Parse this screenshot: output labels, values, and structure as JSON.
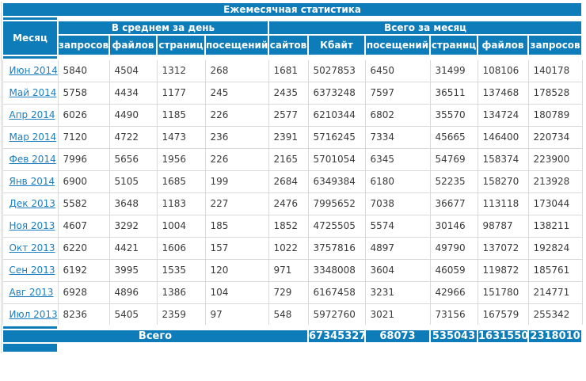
{
  "title": "Ежемесячная статистика",
  "table": {
    "month_header": "Месяц",
    "group_headers": {
      "avg_per_day": "В среднем за день",
      "total_per_month": "Всего за месяц"
    },
    "avg_columns": [
      "запросов",
      "файлов",
      "страниц",
      "посещений"
    ],
    "total_columns": [
      "сайтов",
      "Кбайт",
      "посещений",
      "страниц",
      "файлов",
      "запросов"
    ],
    "rows": [
      {
        "month": "Июн 2014",
        "values": [
          "5840",
          "4504",
          "1312",
          "268",
          "1681",
          "5027853",
          "6450",
          "31499",
          "108106",
          "140178"
        ]
      },
      {
        "month": "Май 2014",
        "values": [
          "5758",
          "4434",
          "1177",
          "245",
          "2435",
          "6373248",
          "7597",
          "36511",
          "137468",
          "178528"
        ]
      },
      {
        "month": "Апр 2014",
        "values": [
          "6026",
          "4490",
          "1185",
          "226",
          "2577",
          "6210344",
          "6802",
          "35570",
          "134724",
          "180789"
        ]
      },
      {
        "month": "Мар 2014",
        "values": [
          "7120",
          "4722",
          "1473",
          "236",
          "2391",
          "5716245",
          "7334",
          "45665",
          "146400",
          "220734"
        ]
      },
      {
        "month": "Фев 2014",
        "values": [
          "7996",
          "5656",
          "1956",
          "226",
          "2165",
          "5701054",
          "6345",
          "54769",
          "158374",
          "223900"
        ]
      },
      {
        "month": "Янв 2014",
        "values": [
          "6900",
          "5105",
          "1685",
          "199",
          "2684",
          "6349384",
          "6180",
          "52235",
          "158270",
          "213928"
        ]
      },
      {
        "month": "Дек 2013",
        "values": [
          "5582",
          "3648",
          "1183",
          "227",
          "2476",
          "7995652",
          "7038",
          "36677",
          "113118",
          "173044"
        ]
      },
      {
        "month": "Ноя 2013",
        "values": [
          "4607",
          "3292",
          "1004",
          "185",
          "1852",
          "4725505",
          "5574",
          "30146",
          "98787",
          "138211"
        ]
      },
      {
        "month": "Окт 2013",
        "values": [
          "6220",
          "4421",
          "1606",
          "157",
          "1022",
          "3757816",
          "4897",
          "49790",
          "137072",
          "192824"
        ]
      },
      {
        "month": "Сен 2013",
        "values": [
          "6192",
          "3995",
          "1535",
          "120",
          "971",
          "3348008",
          "3604",
          "46059",
          "119872",
          "185761"
        ]
      },
      {
        "month": "Авг 2013",
        "values": [
          "6928",
          "4896",
          "1386",
          "104",
          "729",
          "6167458",
          "3231",
          "42966",
          "151780",
          "214771"
        ]
      },
      {
        "month": "Июл 2013",
        "values": [
          "8236",
          "5405",
          "2359",
          "97",
          "548",
          "5972760",
          "3021",
          "73156",
          "167579",
          "255342"
        ]
      }
    ],
    "totals": {
      "label": "Всего",
      "values": [
        "67345327",
        "68073",
        "535043",
        "1631550",
        "2318010"
      ]
    }
  },
  "colors": {
    "accent_blue": "#0d7cb8",
    "link_blue": "#1b7ec0",
    "grid_gray": "#d9d9d9",
    "text": "#3a3a3a"
  }
}
